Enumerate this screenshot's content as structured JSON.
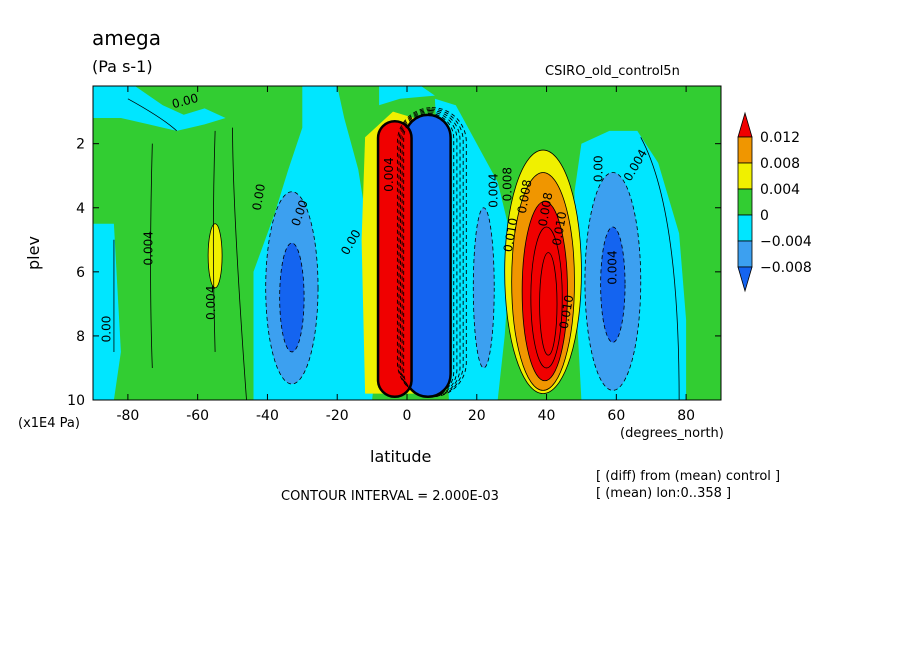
{
  "title": "amega",
  "units": "(Pa s-1)",
  "dataset": "CSIRO_old_control5n",
  "xlabel": "latitude",
  "x_units": "(degrees_north)",
  "ylabel": "plev",
  "y_units": "(x1E4 Pa)",
  "contour_interval": "CONTOUR INTERVAL = 2.000E-03",
  "notes": [
    "[ (diff) from (mean) control ]",
    "[ (mean) lon:0..358 ]"
  ],
  "colorbar_labels": [
    "0.012",
    "0.008",
    "0.004",
    "0",
    "−0.004",
    "−0.008"
  ],
  "colors": {
    "lt_-0.008": "#1464f0",
    "-0.008_-0.004": "#3ca0f0",
    "-0.004_0": "#00e6ff",
    "0_0.004": "#32cd32",
    "0.004_0.008": "#f0f000",
    "0.008_0.012": "#f09600",
    "gt_0.012": "#f00000"
  },
  "contour_labels": [
    "0.00",
    "0.00",
    "0.00",
    "0.00",
    "0.00",
    "0.004",
    "0.004",
    "0.004",
    "0.004",
    "0.008",
    "0.008",
    "0.008",
    "0.010",
    "0.010",
    "0.010",
    "0.004",
    "0.00",
    "0.004"
  ],
  "chart_data": {
    "type": "heatmap",
    "title": "amega",
    "subtitle": "(Pa s-1)",
    "xlabel": "latitude",
    "ylabel": "plev",
    "xlim": [
      -90,
      90
    ],
    "ylim": [
      10,
      0.2
    ],
    "x_ticks": [
      -80,
      -60,
      -40,
      -20,
      0,
      20,
      40,
      60,
      80
    ],
    "y_ticks": [
      2,
      4,
      6,
      8,
      10
    ],
    "levels": [
      -0.008,
      -0.004,
      0,
      0.004,
      0.008,
      0.012
    ],
    "contour_interval": 0.002,
    "features": [
      {
        "name": "strong ascent",
        "lat_range": [
          -8,
          0
        ],
        "plev_range": [
          1.3,
          9.7
        ],
        "value": "< -0.008"
      },
      {
        "name": "strong descent",
        "lat_range": [
          0,
          12
        ],
        "plev_range": [
          1.3,
          9.7
        ],
        "value": "> 0.012"
      },
      {
        "name": "midlatitude positive",
        "lat_range": [
          28,
          50
        ],
        "plev_range": [
          2.3,
          9.7
        ],
        "value": "> 0.012"
      },
      {
        "name": "southern negative",
        "lat_range": [
          -40,
          -24
        ],
        "plev_range": [
          4,
          9.7
        ],
        "value": "-0.008"
      },
      {
        "name": "northern negative",
        "lat_range": [
          52,
          68
        ],
        "plev_range": [
          3.5,
          9.7
        ],
        "value": "-0.008"
      }
    ]
  }
}
